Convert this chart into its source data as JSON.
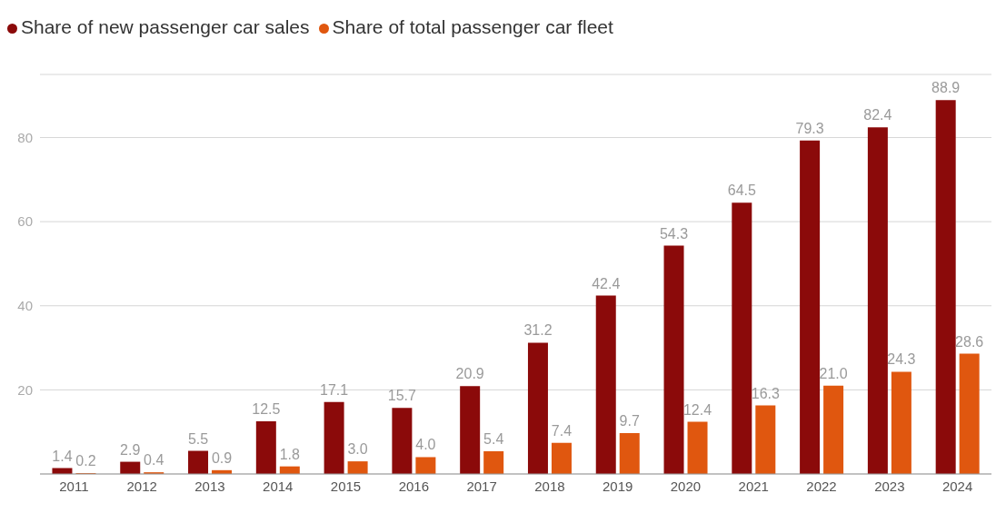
{
  "chart_data": {
    "type": "bar",
    "categories": [
      "2011",
      "2012",
      "2013",
      "2014",
      "2015",
      "2016",
      "2017",
      "2018",
      "2019",
      "2020",
      "2021",
      "2022",
      "2023",
      "2024"
    ],
    "series": [
      {
        "name": "Share of new passenger car sales",
        "color": "#8b0a0a",
        "values": [
          1.4,
          2.9,
          5.5,
          12.5,
          17.1,
          15.7,
          20.9,
          31.2,
          42.4,
          54.3,
          64.5,
          79.3,
          82.4,
          88.9
        ],
        "value_labels": [
          "1.4",
          "2.9",
          "5.5",
          "12.5",
          "17.1",
          "15.7",
          "20.9",
          "31.2",
          "42.4",
          "54.3",
          "64.5",
          "79.3",
          "82.4",
          "88.9"
        ]
      },
      {
        "name": "Share of total passenger car fleet",
        "color": "#e0570f",
        "values": [
          0.2,
          0.4,
          0.9,
          1.8,
          3.0,
          4.0,
          5.4,
          7.4,
          9.7,
          12.4,
          16.3,
          21.0,
          24.3,
          28.6
        ],
        "value_labels": [
          "0.2",
          "0.4",
          "0.9",
          "1.8",
          "3.0",
          "4.0",
          "5.4",
          "7.4",
          "9.7",
          "12.4",
          "16.3",
          "21.0",
          "24.3",
          "28.6"
        ]
      }
    ],
    "ylim": [
      0,
      95
    ],
    "yticks": [
      20,
      40,
      60,
      80
    ],
    "grid": "y",
    "legend": "top left"
  }
}
